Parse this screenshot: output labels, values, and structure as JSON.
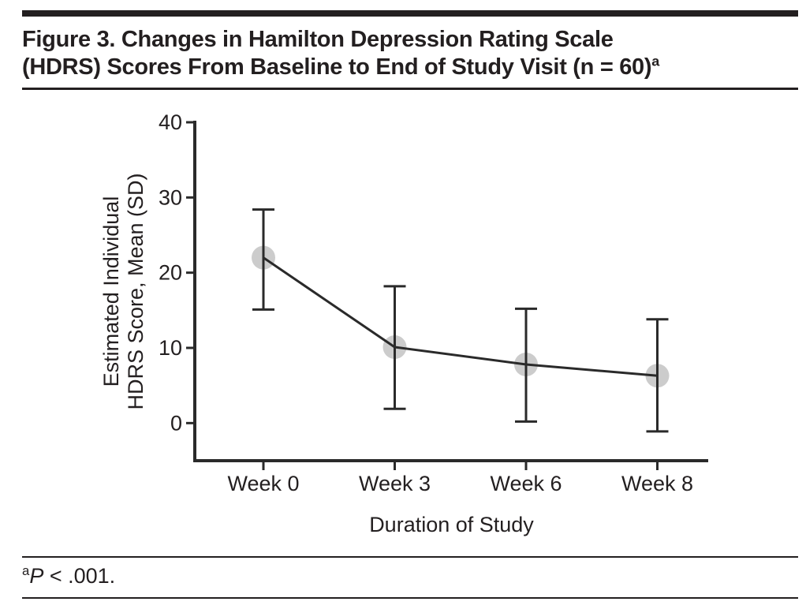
{
  "header": {
    "title_line1": "Figure 3. Changes in Hamilton Depression Rating Scale",
    "title_line2": "(HDRS) Scores From Baseline to End of Study Visit (n = 60)",
    "title_superscript": "a"
  },
  "chart_data": {
    "type": "line",
    "title": "Figure 3. Changes in Hamilton Depression Rating Scale (HDRS) Scores From Baseline to End of Study Visit (n = 60)",
    "categories": [
      "Week 0",
      "Week 3",
      "Week 6",
      "Week 8"
    ],
    "series": [
      {
        "name": "Estimated Individual HDRS Score, Mean (SD)",
        "values": [
          22.0,
          10.1,
          7.8,
          6.3
        ],
        "error_upper": [
          28.4,
          18.2,
          15.2,
          13.8
        ],
        "error_lower": [
          15.1,
          1.9,
          0.2,
          -1.1
        ]
      }
    ],
    "xlabel": "Duration of Study",
    "ylabel_lines": [
      "Estimated Individual",
      "HDRS Score, Mean (SD)"
    ],
    "yticks": [
      0,
      10,
      20,
      30,
      40
    ],
    "ylim": [
      -5,
      40
    ],
    "grid": false,
    "legend": "none",
    "marker": {
      "shape": "circle",
      "fill": "#cccccc",
      "radius": 15
    },
    "line_color": "#2a2a2a"
  },
  "footnote": {
    "superscript": "a",
    "stat_label": "P",
    "text": " < .001."
  },
  "colors": {
    "ink": "#231f20",
    "chart_line": "#2a2a2a",
    "marker_fill": "#cccccc"
  }
}
